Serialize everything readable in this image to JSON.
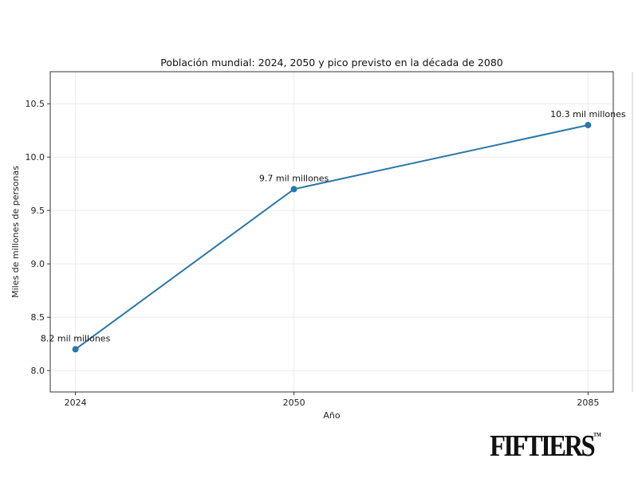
{
  "chart_data": {
    "type": "line",
    "title": "Población mundial: 2024, 2050 y pico previsto en la década de 2080",
    "xlabel": "Año",
    "ylabel": "Miles de millones de personas",
    "x": [
      2024,
      2050,
      2085
    ],
    "series": [
      {
        "values": [
          8.2,
          9.7,
          10.3
        ],
        "color": "#2a77a8"
      }
    ],
    "data_labels": [
      "8.2 mil millones",
      "9.7 mil millones",
      "10.3 mil millones"
    ],
    "xticks": [
      "2024",
      "2050",
      "2085"
    ],
    "yticks": [
      "8.0",
      "8.5",
      "9.0",
      "9.5",
      "10.0",
      "10.5"
    ],
    "xlim": [
      2021,
      2088
    ],
    "ylim": [
      7.8,
      10.8
    ],
    "grid": true
  },
  "logo": {
    "text": "FIFTIERS",
    "tm": "TM"
  }
}
